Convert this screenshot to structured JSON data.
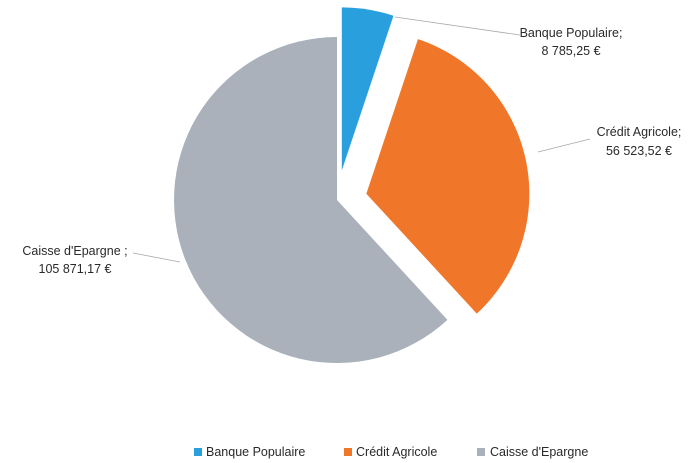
{
  "chart_data": {
    "type": "pie",
    "title": "",
    "categories": [
      "Banque Populaire",
      "Crédit Agricole",
      "Caisse d'Epargne"
    ],
    "values": [
      8785.25,
      56523.52,
      105871.17
    ],
    "value_labels": [
      "8 785,25 €",
      "56 523,52 €",
      "105 871,17 €"
    ],
    "slice_label_names": [
      "Banque Populaire;",
      "Crédit Agricole;",
      "Caisse d'Epargne ;"
    ],
    "colors": [
      "#2a9fde",
      "#f0762a",
      "#aab1bb"
    ],
    "exploded": true,
    "legend_position": "bottom"
  }
}
